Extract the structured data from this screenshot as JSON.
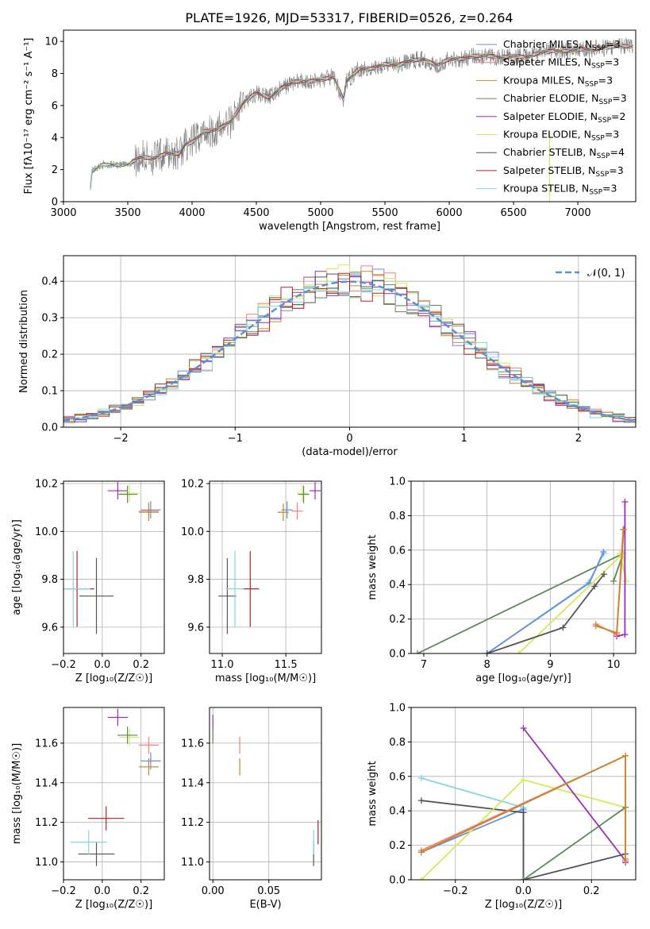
{
  "title": "PLATE=1926, MJD=53317, FIBERID=0526, z=0.264",
  "colors": {
    "chabrier_miles": "#6a8fd8",
    "salpeter_miles": "#f07f7f",
    "kroupa_miles": "#c8862a",
    "chabrier_elodie": "#5a8a5a",
    "salpeter_elodie": "#9a2fb3",
    "kroupa_elodie": "#d6e85a",
    "chabrier_stelib": "#555555",
    "salpeter_stelib": "#b22222",
    "kroupa_stelib": "#87d3e3",
    "gauss": "#5b8fd8",
    "grid": "#b0b0b0"
  },
  "legend_spectrum": [
    {
      "text": "Chabrier MILES, N",
      "sub": "SSP",
      "tail": "=3",
      "color": "#6a8fd8"
    },
    {
      "text": "Salpeter MILES, N",
      "sub": "SSP",
      "tail": "=3",
      "color": "#f07f7f"
    },
    {
      "text": "Kroupa MILES, N",
      "sub": "SSP",
      "tail": "=3",
      "color": "#c8862a"
    },
    {
      "text": "Chabrier ELODIE, N",
      "sub": "SSP",
      "tail": "=3",
      "color": "#5a8a5a"
    },
    {
      "text": "Salpeter ELODIE, N",
      "sub": "SSP",
      "tail": "=2",
      "color": "#9a2fb3"
    },
    {
      "text": "Kroupa ELODIE, N",
      "sub": "SSP",
      "tail": "=3",
      "color": "#d6e85a"
    },
    {
      "text": "Chabrier STELIB, N",
      "sub": "SSP",
      "tail": "=4",
      "color": "#555555"
    },
    {
      "text": "Salpeter STELIB, N",
      "sub": "SSP",
      "tail": "=3",
      "color": "#b22222"
    },
    {
      "text": "Kroupa STELIB, N",
      "sub": "SSP",
      "tail": "=3",
      "color": "#87d3e3"
    }
  ],
  "chart_data": [
    {
      "type": "line",
      "title": "PLATE=1926, MJD=53317, FIBERID=0526, z=0.264",
      "xlabel": "wavelength [Angstrom, rest frame]",
      "ylabel": "Flux [fλ10⁻¹⁷ erg cm⁻² s⁻¹ A⁻¹]",
      "xlim": [
        3000,
        7450
      ],
      "ylim": [
        0,
        10.7
      ],
      "xticks": [
        3000,
        3500,
        4000,
        4500,
        5000,
        5500,
        6000,
        6500,
        7000
      ],
      "yticks": [
        0,
        2,
        4,
        6,
        8,
        10
      ],
      "legend_position": "upper right",
      "x": [
        3200,
        3220,
        3300,
        3400,
        3500,
        3600,
        3700,
        3800,
        3900,
        3950,
        4000,
        4100,
        4200,
        4300,
        4400,
        4500,
        4600,
        4700,
        4800,
        4900,
        5000,
        5100,
        5180,
        5200,
        5300,
        5400,
        5500,
        5600,
        5700,
        5800,
        5900,
        6000,
        6100,
        6200,
        6300,
        6400,
        6500,
        6600,
        6700,
        6800,
        6900,
        7000,
        7100,
        7200,
        7300
      ],
      "y": [
        0.0,
        1.9,
        2.3,
        2.3,
        2.3,
        2.8,
        2.7,
        3.0,
        3.0,
        3.6,
        3.7,
        4.4,
        4.5,
        5.0,
        6.2,
        6.8,
        6.5,
        7.1,
        7.5,
        7.5,
        7.6,
        7.8,
        6.3,
        7.5,
        8.3,
        8.3,
        8.6,
        8.5,
        8.8,
        8.9,
        8.5,
        8.9,
        8.9,
        9.1,
        9.1,
        9.0,
        9.1,
        9.0,
        9.3,
        9.4,
        9.4,
        9.5,
        9.5,
        9.6,
        9.7
      ]
    },
    {
      "type": "line",
      "xlabel": "(data-model)/error",
      "ylabel": "Normed distribution",
      "xlim": [
        -2.5,
        2.5
      ],
      "ylim": [
        0,
        0.47
      ],
      "xticks": [
        -2,
        -1,
        0,
        1,
        2
      ],
      "yticks": [
        0.0,
        0.1,
        0.2,
        0.3,
        0.4
      ],
      "legend_position": "upper right",
      "series": [
        {
          "name": "𝒩(0, 1)",
          "style": "dashed gaussian",
          "mean": 0,
          "sigma": 1
        }
      ],
      "histogram_x": [
        -2.4,
        -2.2,
        -2.0,
        -1.8,
        -1.6,
        -1.4,
        -1.2,
        -1.0,
        -0.8,
        -0.6,
        -0.4,
        -0.2,
        0.0,
        0.2,
        0.4,
        0.6,
        0.8,
        1.0,
        1.2,
        1.4,
        1.6,
        1.8,
        2.0,
        2.2,
        2.4
      ],
      "histogram_y": [
        0.025,
        0.035,
        0.055,
        0.08,
        0.11,
        0.15,
        0.2,
        0.24,
        0.27,
        0.31,
        0.35,
        0.37,
        0.4,
        0.38,
        0.36,
        0.33,
        0.3,
        0.25,
        0.2,
        0.15,
        0.12,
        0.09,
        0.06,
        0.04,
        0.025
      ]
    },
    {
      "type": "scatter",
      "xlabel": "Z [log₁₀(Z/Z☉)]",
      "ylabel": "age  [log₁₀(age/yr)]",
      "xlim": [
        -0.2,
        0.32
      ],
      "ylim": [
        9.49,
        10.21
      ],
      "xticks": [
        -0.2,
        0.0,
        0.2
      ],
      "yticks": [
        9.6,
        9.8,
        10.0,
        10.2
      ],
      "points": [
        {
          "x": -0.03,
          "y": 9.73,
          "color": "#555555"
        },
        {
          "x": -0.13,
          "y": 9.76,
          "color": "#b22222"
        },
        {
          "x": -0.15,
          "y": 9.76,
          "color": "#87d3e3"
        },
        {
          "x": 0.08,
          "y": 10.17,
          "color": "#9a2fb3"
        },
        {
          "x": 0.14,
          "y": 10.16,
          "color": "#d6e85a"
        },
        {
          "x": 0.13,
          "y": 10.155,
          "color": "#5a8a5a"
        },
        {
          "x": 0.25,
          "y": 10.09,
          "color": "#6a8fd8"
        },
        {
          "x": 0.24,
          "y": 10.085,
          "color": "#f07f7f"
        },
        {
          "x": 0.24,
          "y": 10.08,
          "color": "#c8862a"
        }
      ]
    },
    {
      "type": "scatter",
      "xlabel": "mass [log₁₀(M/M☉)]",
      "xlim": [
        10.9,
        11.78
      ],
      "ylim": [
        9.49,
        10.21
      ],
      "xticks": [
        11.0,
        11.5
      ],
      "yticks": [
        9.6,
        9.8,
        10.0,
        10.2
      ],
      "points": [
        {
          "x": 11.04,
          "y": 9.73,
          "color": "#555555"
        },
        {
          "x": 11.22,
          "y": 9.76,
          "color": "#b22222"
        },
        {
          "x": 11.1,
          "y": 9.76,
          "color": "#87d3e3"
        },
        {
          "x": 11.73,
          "y": 10.17,
          "color": "#9a2fb3"
        },
        {
          "x": 11.63,
          "y": 10.16,
          "color": "#d6e85a"
        },
        {
          "x": 11.64,
          "y": 10.155,
          "color": "#5a8a5a"
        },
        {
          "x": 11.51,
          "y": 10.09,
          "color": "#6a8fd8"
        },
        {
          "x": 11.59,
          "y": 10.085,
          "color": "#f07f7f"
        },
        {
          "x": 11.48,
          "y": 10.08,
          "color": "#c8862a"
        }
      ]
    },
    {
      "type": "line",
      "xlabel": "age  [log₁₀(age/yr)]",
      "ylabel": "mass weight",
      "xlim": [
        6.8,
        10.35
      ],
      "ylim": [
        0,
        1.0
      ],
      "xticks": [
        7,
        8,
        9,
        10
      ],
      "yticks": [
        0.0,
        0.2,
        0.4,
        0.6,
        0.8,
        1.0
      ],
      "series": [
        {
          "color": "#5a8a5a",
          "x": [
            6.9,
            10.15,
            10.0
          ],
          "y": [
            0.0,
            0.58,
            0.42
          ]
        },
        {
          "color": "#87d3e3",
          "x": [
            8.0,
            9.6,
            9.85
          ],
          "y": [
            0.0,
            0.41,
            0.58
          ]
        },
        {
          "color": "#6a8fd8",
          "x": [
            8.0,
            9.62,
            9.84
          ],
          "y": [
            0.0,
            0.41,
            0.59
          ]
        },
        {
          "color": "#d6e85a",
          "x": [
            8.5,
            10.15,
            10.2,
            10.1
          ],
          "y": [
            0.0,
            0.58,
            0.42,
            0.58
          ]
        },
        {
          "color": "#555555",
          "x": [
            8.0,
            9.2,
            9.7,
            9.85
          ],
          "y": [
            0.0,
            0.15,
            0.39,
            0.46
          ]
        },
        {
          "color": "#9a2fb3",
          "x": [
            10.18,
            10.18,
            10.05
          ],
          "y": [
            0.88,
            0.11,
            0.1
          ]
        },
        {
          "color": "#f07f7f",
          "x": [
            9.72,
            10.05,
            10.15
          ],
          "y": [
            0.17,
            0.11,
            0.72
          ]
        },
        {
          "color": "#c8862a",
          "x": [
            9.72,
            10.05,
            10.16
          ],
          "y": [
            0.16,
            0.12,
            0.72
          ]
        }
      ]
    },
    {
      "type": "scatter",
      "xlabel": "Z [log₁₀(Z/Z☉)]",
      "ylabel": "mass [log₁₀(M/M☉)]",
      "xlim": [
        -0.2,
        0.32
      ],
      "ylim": [
        10.91,
        11.78
      ],
      "xticks": [
        -0.2,
        0.0,
        0.2
      ],
      "yticks": [
        11.0,
        11.2,
        11.4,
        11.6
      ],
      "points": [
        {
          "x": -0.03,
          "y": 11.04,
          "color": "#555555"
        },
        {
          "x": -0.07,
          "y": 11.1,
          "color": "#87d3e3"
        },
        {
          "x": 0.02,
          "y": 11.22,
          "color": "#b22222"
        },
        {
          "x": 0.08,
          "y": 11.73,
          "color": "#9a2fb3"
        },
        {
          "x": 0.14,
          "y": 11.63,
          "color": "#d6e85a"
        },
        {
          "x": 0.13,
          "y": 11.64,
          "color": "#5a8a5a"
        },
        {
          "x": 0.25,
          "y": 11.51,
          "color": "#6a8fd8"
        },
        {
          "x": 0.24,
          "y": 11.59,
          "color": "#f07f7f"
        },
        {
          "x": 0.24,
          "y": 11.48,
          "color": "#c8862a"
        }
      ]
    },
    {
      "type": "scatter",
      "xlabel": "E(B-V)",
      "xlim": [
        -0.003,
        0.097
      ],
      "ylim": [
        10.91,
        11.78
      ],
      "xticks": [
        0.0,
        0.05
      ],
      "yticks": [
        11.0,
        11.2,
        11.4,
        11.6
      ],
      "points": [
        {
          "x": 0.0,
          "y": 11.7,
          "color": "#9a2fb3"
        },
        {
          "x": 0.0,
          "y": 11.63,
          "color": "#d6e85a"
        },
        {
          "x": 0.0,
          "y": 11.64,
          "color": "#5a8a5a"
        },
        {
          "x": 0.024,
          "y": 11.59,
          "color": "#f07f7f"
        },
        {
          "x": 0.024,
          "y": 11.48,
          "color": "#c8862a"
        },
        {
          "x": 0.09,
          "y": 11.04,
          "color": "#555555"
        },
        {
          "x": 0.09,
          "y": 11.1,
          "color": "#87d3e3"
        },
        {
          "x": 0.094,
          "y": 11.15,
          "color": "#b22222"
        }
      ]
    },
    {
      "type": "line",
      "xlabel": "Z [log₁₀(Z/Z☉)]",
      "ylabel": "mass weight",
      "xlim": [
        -0.33,
        0.33
      ],
      "ylim": [
        0,
        1.0
      ],
      "xticks": [
        -0.2,
        0.0,
        0.2
      ],
      "yticks": [
        0.0,
        0.2,
        0.4,
        0.6,
        0.8,
        1.0
      ],
      "series": [
        {
          "color": "#87d3e3",
          "x": [
            -0.3,
            0.0,
            0.0
          ],
          "y": [
            0.59,
            0.42,
            0.0
          ]
        },
        {
          "color": "#6a8fd8",
          "x": [
            -0.3,
            0.0,
            0.0
          ],
          "y": [
            0.16,
            0.41,
            0.0
          ]
        },
        {
          "color": "#555555",
          "x": [
            -0.3,
            0.0,
            0.0,
            0.3
          ],
          "y": [
            0.46,
            0.39,
            0.0,
            0.15
          ]
        },
        {
          "color": "#d6e85a",
          "x": [
            -0.3,
            0.0,
            0.3
          ],
          "y": [
            0.0,
            0.58,
            0.42
          ]
        },
        {
          "color": "#5a8a5a",
          "x": [
            0.0,
            0.3
          ],
          "y": [
            0.0,
            0.42
          ]
        },
        {
          "color": "#9a2fb3",
          "x": [
            0.0,
            0.3,
            0.3
          ],
          "y": [
            0.88,
            0.11,
            0.1
          ]
        },
        {
          "color": "#f07f7f",
          "x": [
            -0.3,
            0.3,
            0.3
          ],
          "y": [
            0.17,
            0.72,
            0.11
          ]
        },
        {
          "color": "#c8862a",
          "x": [
            -0.3,
            0.3,
            0.3
          ],
          "y": [
            0.16,
            0.72,
            0.12
          ]
        }
      ]
    }
  ]
}
